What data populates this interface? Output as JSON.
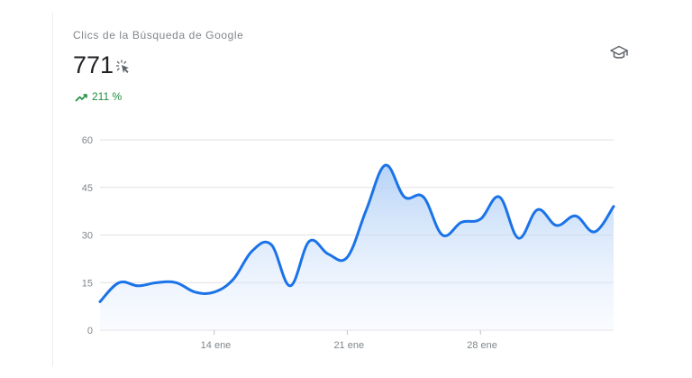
{
  "card": {
    "title": "Clics de la Búsqueda de Google",
    "metric_value": "771",
    "metric_icon": "click-cursor-icon",
    "trend_icon": "trending-up-icon",
    "trend_value": "211 %",
    "trend_color": "#1e8e3e",
    "help_icon": "school-cap-icon"
  },
  "colors": {
    "line": "#1a73e8",
    "area_top": "#a9cbf5",
    "gridline": "#e0e0e0",
    "text_muted": "#80868b"
  },
  "chart_data": {
    "type": "area",
    "title": "Clics de la Búsqueda de Google",
    "xlabel": "",
    "ylabel": "",
    "ylim": [
      0,
      60
    ],
    "yticks": [
      0,
      15,
      30,
      45,
      60
    ],
    "ytick_labels": [
      "0",
      "15",
      "30",
      "45",
      "60"
    ],
    "x_start_label": "",
    "xticks": [
      {
        "label": "14 ene",
        "index": 6
      },
      {
        "label": "21 ene",
        "index": 13
      },
      {
        "label": "28 ene",
        "index": 20
      }
    ],
    "grid": true,
    "series": [
      {
        "name": "",
        "values": [
          9,
          15,
          14,
          15,
          15,
          12,
          12,
          16,
          25,
          27,
          14,
          28,
          24,
          23,
          38,
          52,
          42,
          42,
          30,
          34,
          35,
          42,
          29,
          38,
          33,
          36,
          31,
          39
        ]
      }
    ]
  }
}
